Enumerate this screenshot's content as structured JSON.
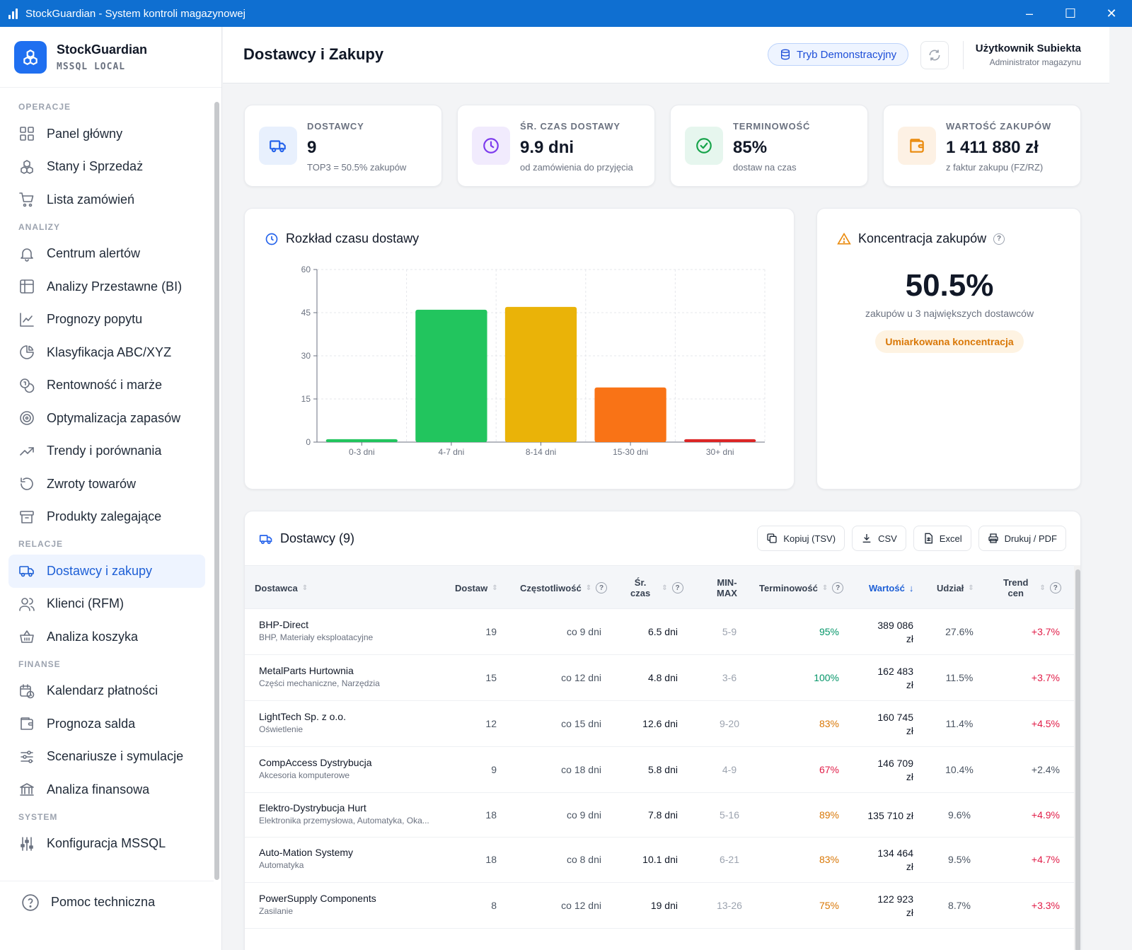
{
  "window": {
    "title": "StockGuardian - System kontroli magazynowej",
    "controls": [
      "–",
      "☐",
      "✕"
    ]
  },
  "brand": {
    "name": "StockGuardian",
    "db": "MSSQL LOCAL"
  },
  "nav": [
    {
      "section": "OPERACJE",
      "items": [
        {
          "label": "Panel główny",
          "icon": "grid-icon"
        },
        {
          "label": "Stany i Sprzedaż",
          "icon": "boxes-icon"
        },
        {
          "label": "Lista zamówień",
          "icon": "cart-icon"
        }
      ]
    },
    {
      "section": "ANALIZY",
      "items": [
        {
          "label": "Centrum alertów",
          "icon": "bell-icon"
        },
        {
          "label": "Analizy Przestawne (BI)",
          "icon": "table-icon"
        },
        {
          "label": "Prognozy popytu",
          "icon": "line-chart-icon"
        },
        {
          "label": "Klasyfikacja ABC/XYZ",
          "icon": "pie-icon"
        },
        {
          "label": "Rentowność i marże",
          "icon": "coins-icon"
        },
        {
          "label": "Optymalizacja zapasów",
          "icon": "target-icon"
        },
        {
          "label": "Trendy i porównania",
          "icon": "trending-icon"
        },
        {
          "label": "Zwroty towarów",
          "icon": "undo-icon"
        },
        {
          "label": "Produkty zalegające",
          "icon": "archive-icon"
        }
      ]
    },
    {
      "section": "RELACJE",
      "items": [
        {
          "label": "Dostawcy i zakupy",
          "icon": "truck-icon",
          "active": true
        },
        {
          "label": "Klienci (RFM)",
          "icon": "users-icon"
        },
        {
          "label": "Analiza koszyka",
          "icon": "basket-icon"
        }
      ]
    },
    {
      "section": "FINANSE",
      "items": [
        {
          "label": "Kalendarz płatności",
          "icon": "calendar-clock-icon"
        },
        {
          "label": "Prognoza salda",
          "icon": "wallet-icon"
        },
        {
          "label": "Scenariusze i symulacje",
          "icon": "sliders-icon"
        },
        {
          "label": "Analiza finansowa",
          "icon": "bank-icon"
        }
      ]
    },
    {
      "section": "SYSTEM",
      "items": [
        {
          "label": "Konfiguracja MSSQL",
          "icon": "settings-sliders-icon"
        }
      ]
    }
  ],
  "help": {
    "label": "Pomoc techniczna"
  },
  "header": {
    "title": "Dostawcy i Zakupy",
    "demo_label": "Tryb Demonstracyjny",
    "user_name": "Użytkownik Subiekta",
    "user_role": "Administrator magazynu"
  },
  "stats": [
    {
      "label": "DOSTAWCY",
      "value": "9",
      "sub": "TOP3 = 50.5% zakupów",
      "icon": "truck-icon",
      "bg": "#e8f0fd",
      "fg": "#2563eb"
    },
    {
      "label": "ŚR. CZAS DOSTAWY",
      "value": "9.9 dni",
      "sub": "od zamówienia do przyjęcia",
      "icon": "clock-icon",
      "bg": "#f1ebfd",
      "fg": "#7c3aed"
    },
    {
      "label": "TERMINOWOŚĆ",
      "value": "85%",
      "sub": "dostaw na czas",
      "icon": "check-circle-icon",
      "bg": "#e6f6ee",
      "fg": "#16a34a"
    },
    {
      "label": "WARTOŚĆ ZAKUPÓW",
      "value": "1 411 880 zł",
      "sub": "z faktur zakupu (FZ/RZ)",
      "icon": "wallet-icon",
      "bg": "#fdf1e4",
      "fg": "#ea8a0c"
    }
  ],
  "chart_title": "Rozkład czasu dostawy",
  "chart_data": {
    "type": "bar",
    "title": "Rozkład czasu dostawy",
    "categories": [
      "0-3 dni",
      "4-7 dni",
      "8-14 dni",
      "15-30 dni",
      "30+ dni"
    ],
    "values": [
      1,
      46,
      47,
      19,
      1
    ],
    "colors": [
      "#22c55e",
      "#22c55e",
      "#eab308",
      "#f97316",
      "#dc2626"
    ],
    "ylim": [
      0,
      60
    ],
    "yticks": [
      0,
      15,
      30,
      45,
      60
    ],
    "xlabel": "",
    "ylabel": "",
    "grid": true
  },
  "concentration": {
    "title": "Koncentracja zakupów",
    "value": "50.5%",
    "sub": "zakupów u 3 największych dostawców",
    "badge": "Umiarkowana koncentracja"
  },
  "suppliers": {
    "title": "Dostawcy (9)",
    "exports": [
      "Kopiuj (TSV)",
      "CSV",
      "Excel",
      "Drukuj / PDF"
    ],
    "columns": {
      "name": "Dostawca",
      "count": "Dostaw",
      "freq": "Częstotliwość",
      "avg1": "Śr.",
      "avg2": "czas",
      "minmax1": "MIN-",
      "minmax2": "MAX",
      "ontime": "Terminowość",
      "value": "Wartość",
      "share": "Udział",
      "trend1": "Trend",
      "trend2": "cen"
    },
    "rows": [
      {
        "name": "BHP-Direct",
        "cat": "BHP, Materiały eksploatacyjne",
        "count": "19",
        "freq": "co 9 dni",
        "avg": "6.5 dni",
        "minmax": "5-9",
        "ontime": "95%",
        "ontime_cls": "green",
        "value1": "389 086",
        "value2": "zł",
        "share": "27.6%",
        "trend": "+3.7%",
        "trend_cls": "red"
      },
      {
        "name": "MetalParts Hurtownia",
        "cat": "Części mechaniczne, Narzędzia",
        "count": "15",
        "freq": "co 12 dni",
        "avg": "4.8 dni",
        "minmax": "3-6",
        "ontime": "100%",
        "ontime_cls": "green",
        "value1": "162 483",
        "value2": "zł",
        "share": "11.5%",
        "trend": "+3.7%",
        "trend_cls": "red"
      },
      {
        "name": "LightTech Sp. z o.o.",
        "cat": "Oświetlenie",
        "count": "12",
        "freq": "co 15 dni",
        "avg": "12.6 dni",
        "minmax": "9-20",
        "ontime": "83%",
        "ontime_cls": "orange",
        "value1": "160 745",
        "value2": "zł",
        "share": "11.4%",
        "trend": "+4.5%",
        "trend_cls": "red"
      },
      {
        "name": "CompAccess Dystrybucja",
        "cat": "Akcesoria komputerowe",
        "count": "9",
        "freq": "co 18 dni",
        "avg": "5.8 dni",
        "minmax": "4-9",
        "ontime": "67%",
        "ontime_cls": "red",
        "value1": "146 709",
        "value2": "zł",
        "share": "10.4%",
        "trend": "+2.4%",
        "trend_cls": ""
      },
      {
        "name": "Elektro-Dystrybucja Hurt",
        "cat": "Elektronika przemysłowa, Automatyka, Oka...",
        "count": "18",
        "freq": "co 9 dni",
        "avg": "7.8 dni",
        "minmax": "5-16",
        "ontime": "89%",
        "ontime_cls": "orange",
        "value1": "135 710 zł",
        "value2": "",
        "share": "9.6%",
        "trend": "+4.9%",
        "trend_cls": "red"
      },
      {
        "name": "Auto-Mation Systemy",
        "cat": "Automatyka",
        "count": "18",
        "freq": "co 8 dni",
        "avg": "10.1 dni",
        "minmax": "6-21",
        "ontime": "83%",
        "ontime_cls": "orange",
        "value1": "134 464",
        "value2": "zł",
        "share": "9.5%",
        "trend": "+4.7%",
        "trend_cls": "red"
      },
      {
        "name": "PowerSupply Components",
        "cat": "Zasilanie",
        "count": "8",
        "freq": "co 12 dni",
        "avg": "19 dni",
        "minmax": "13-26",
        "ontime": "75%",
        "ontime_cls": "orange",
        "value1": "122 923",
        "value2": "zł",
        "share": "8.7%",
        "trend": "+3.3%",
        "trend_cls": "red"
      }
    ]
  }
}
